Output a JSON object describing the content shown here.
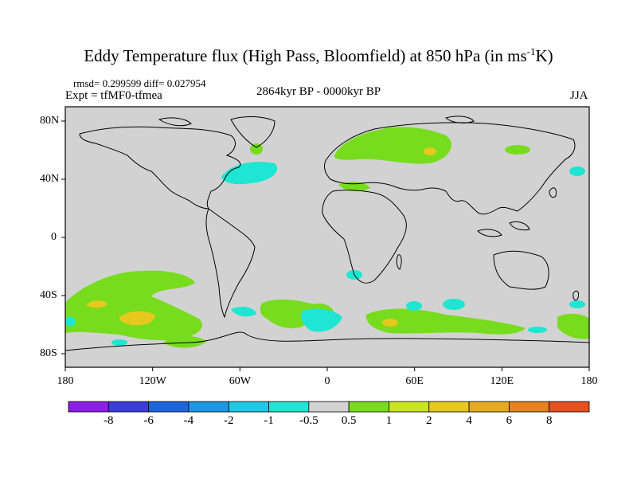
{
  "title_main": "Eddy Temperature flux (High Pass, Bloomfield) at 850 hPa (in ms",
  "title_sup": "-1",
  "title_end": "K)",
  "stats": "rmsd= 0.299599 diff= 0.027954",
  "experiment": "Expt = tfMF0-tfmea",
  "period": "2864kyr BP - 0000kyr BP",
  "season": "JJA",
  "lat_labels": [
    "80N",
    "40N",
    "0",
    "40S",
    "80S"
  ],
  "lon_labels": [
    "180",
    "120W",
    "60W",
    "0",
    "60E",
    "120E",
    "180"
  ],
  "colorbar": {
    "labels": [
      "-8",
      "-6",
      "-4",
      "-2",
      "-1",
      "-0.5",
      "0.5",
      "1",
      "2",
      "4",
      "6",
      "8"
    ],
    "colors": [
      "#8c1ee6",
      "#3c3cdc",
      "#1e64dc",
      "#1e96e6",
      "#1ec8e6",
      "#1ee6d2",
      "#d2d2d2",
      "#78dc1e",
      "#c8e61e",
      "#e6c81e",
      "#e6aa1e",
      "#e6821e",
      "#e6501e"
    ]
  },
  "map_colors": {
    "background": "#d2d2d2",
    "coast": "#000000"
  }
}
